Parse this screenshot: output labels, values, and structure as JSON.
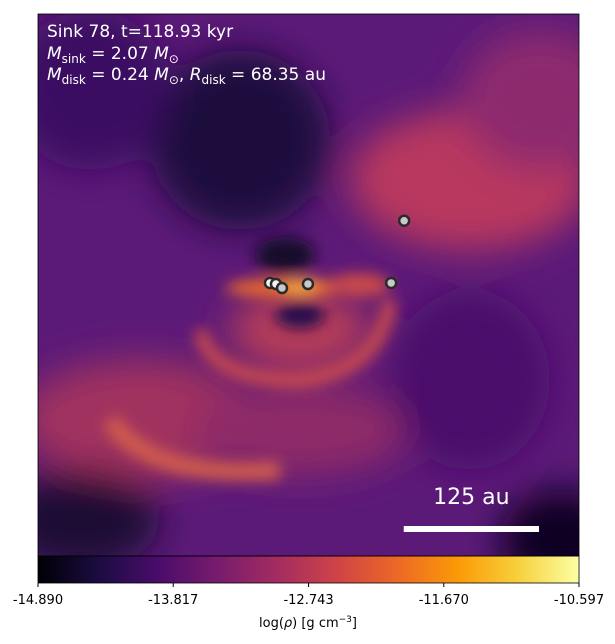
{
  "chart_data": {
    "type": "image",
    "label_lines": [
      [
        "Sink 78, t=118.93 kyr"
      ],
      [
        "M",
        "sink",
        " = 2.07 ",
        "M",
        "⊙"
      ],
      [
        "M",
        "disk",
        " = 0.24 ",
        "M",
        "⊙",
        ", ",
        "R",
        "disk",
        " = 68.35 au"
      ]
    ],
    "xlim": [
      -250,
      250
    ],
    "ylim": [
      -250,
      250
    ],
    "sinks": {
      "x": [
        -35.6,
        -30.1,
        -24.5,
        -0.5,
        76.4,
        88.4
      ],
      "y": [
        1.9,
        0.9,
        -2.8,
        0.9,
        1.9,
        59.3
      ]
    },
    "scale_bar": {
      "value": 125,
      "label": "125 au"
    },
    "colorbar": {
      "lim": [
        -14.89,
        -10.597
      ],
      "ticks": [
        {
          "value": -14.89,
          "label": "-14.890"
        },
        {
          "value": -13.817,
          "label": "-13.817"
        },
        {
          "value": -12.743,
          "label": "-12.743"
        },
        {
          "value": -11.67,
          "label": "-11.670"
        },
        {
          "value": -10.597,
          "label": "-10.597"
        }
      ],
      "label": [
        "log(",
        "ρ",
        ") [g cm",
        "−3",
        "]"
      ],
      "colormap": [
        "#000004",
        "#1b0c41",
        "#4a0c6b",
        "#781c6d",
        "#a52c60",
        "#cf4446",
        "#ed6925",
        "#fb9b06",
        "#f7d13d",
        "#fcffa4"
      ]
    }
  }
}
